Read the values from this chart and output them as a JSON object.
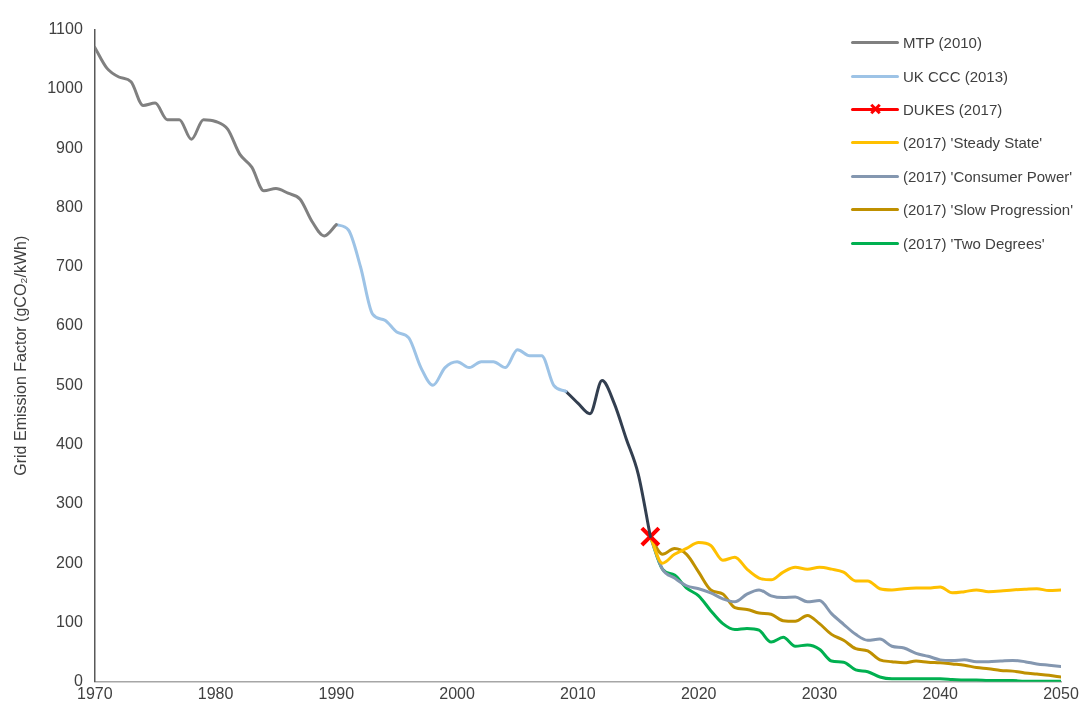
{
  "chart_data": {
    "type": "line",
    "ylabel": "Grid Emission Factor (gCO₂/kWh)",
    "xlim": [
      1970,
      2050
    ],
    "xticks": [
      1970,
      1980,
      1990,
      2000,
      2010,
      2020,
      2030,
      2040,
      2050
    ],
    "ylim": [
      0,
      1100
    ],
    "yticks": [
      0,
      100,
      200,
      300,
      400,
      500,
      600,
      700,
      800,
      900,
      1000,
      1100
    ],
    "grid": false,
    "legend": "top right",
    "marker": "none",
    "line_style": "solid",
    "series": [
      {
        "name": "MTP (2010)",
        "color": "#808080",
        "x": [
          1970,
          1971,
          1972,
          1973,
          1974,
          1975,
          1976,
          1977,
          1978,
          1979,
          1980,
          1981,
          1982,
          1983,
          1984,
          1985,
          1986,
          1987,
          1988,
          1989,
          1990
        ],
        "values": [
          1070,
          1035,
          1020,
          1012,
          972,
          976,
          948,
          948,
          915,
          948,
          945,
          932,
          890,
          868,
          828,
          832,
          824,
          814,
          776,
          752,
          771
        ]
      },
      {
        "name": "UK CCC (2013)",
        "color": "#9dc3e6",
        "x": [
          1990,
          1991,
          1992,
          1993,
          1994,
          1995,
          1996,
          1997,
          1998,
          1999,
          2000,
          2001,
          2002,
          2003,
          2004,
          2005,
          2006,
          2007,
          2008,
          2009
        ],
        "values": [
          771,
          762,
          700,
          620,
          610,
          590,
          580,
          530,
          500,
          530,
          540,
          530,
          540,
          540,
          530,
          560,
          550,
          550,
          500,
          490
        ]
      },
      {
        "color": "#333f50",
        "x": [
          2009,
          2010,
          2011,
          2012,
          2013,
          2014,
          2015,
          2016
        ],
        "values": [
          490,
          470,
          452,
          508,
          470,
          410,
          350,
          245
        ]
      },
      {
        "name": "DUKES (2017)",
        "color": "#ff0000",
        "marker": "cross",
        "x": [
          2016
        ],
        "values": [
          245
        ]
      },
      {
        "name": "(2017) 'Steady State'",
        "color": "#ffc000",
        "x": [
          2016,
          2017,
          2018,
          2019,
          2020,
          2021,
          2022,
          2023,
          2024,
          2025,
          2026,
          2027,
          2028,
          2029,
          2030,
          2031,
          2032,
          2033,
          2034,
          2035,
          2036,
          2037,
          2038,
          2039,
          2040,
          2041,
          2042,
          2043,
          2044,
          2045,
          2046,
          2047,
          2048,
          2049,
          2050
        ],
        "values": [
          245,
          200,
          215,
          225,
          235,
          230,
          205,
          210,
          190,
          175,
          172,
          185,
          193,
          190,
          193,
          190,
          185,
          170,
          170,
          157,
          155,
          157,
          158,
          158,
          160,
          150,
          152,
          155,
          152,
          153,
          155,
          156,
          157,
          154,
          155
        ]
      },
      {
        "name": "(2017) 'Consumer Power'",
        "color": "#8497b0",
        "x": [
          2016,
          2017,
          2018,
          2019,
          2020,
          2021,
          2022,
          2023,
          2024,
          2025,
          2026,
          2027,
          2028,
          2029,
          2030,
          2031,
          2032,
          2033,
          2034,
          2035,
          2036,
          2037,
          2038,
          2039,
          2040,
          2041,
          2042,
          2043,
          2044,
          2045,
          2046,
          2047,
          2048,
          2049,
          2050
        ],
        "values": [
          245,
          190,
          175,
          162,
          157,
          150,
          140,
          135,
          148,
          155,
          145,
          142,
          143,
          135,
          137,
          115,
          97,
          80,
          70,
          72,
          60,
          57,
          48,
          43,
          37,
          36,
          37,
          34,
          34,
          35,
          36,
          34,
          30,
          28,
          26
        ]
      },
      {
        "name": "(2017) 'Slow Progression'",
        "color": "#bf9000",
        "x": [
          2016,
          2017,
          2018,
          2019,
          2020,
          2021,
          2022,
          2023,
          2024,
          2025,
          2026,
          2027,
          2028,
          2029,
          2030,
          2031,
          2032,
          2033,
          2034,
          2035,
          2036,
          2037,
          2038,
          2039,
          2040,
          2041,
          2042,
          2043,
          2044,
          2045,
          2046,
          2047,
          2048,
          2049,
          2050
        ],
        "values": [
          245,
          215,
          225,
          215,
          185,
          155,
          148,
          125,
          122,
          116,
          114,
          103,
          102,
          112,
          98,
          80,
          70,
          56,
          52,
          37,
          34,
          32,
          35,
          33,
          32,
          30,
          28,
          24,
          22,
          19,
          18,
          15,
          13,
          11,
          8
        ]
      },
      {
        "name": "(2017) 'Two Degrees'",
        "color": "#00b050",
        "x": [
          2016,
          2017,
          2018,
          2019,
          2020,
          2021,
          2022,
          2023,
          2024,
          2025,
          2026,
          2027,
          2028,
          2029,
          2030,
          2031,
          2032,
          2033,
          2034,
          2035,
          2036,
          2037,
          2038,
          2039,
          2040,
          2041,
          2042,
          2043,
          2044,
          2045,
          2046,
          2047,
          2048,
          2049,
          2050
        ],
        "values": [
          245,
          190,
          180,
          158,
          145,
          120,
          98,
          88,
          90,
          87,
          67,
          75,
          60,
          62,
          55,
          35,
          33,
          20,
          17,
          8,
          5,
          5,
          5,
          5,
          5,
          4,
          3,
          3,
          2,
          2,
          2,
          1,
          1,
          1,
          1
        ]
      }
    ]
  }
}
